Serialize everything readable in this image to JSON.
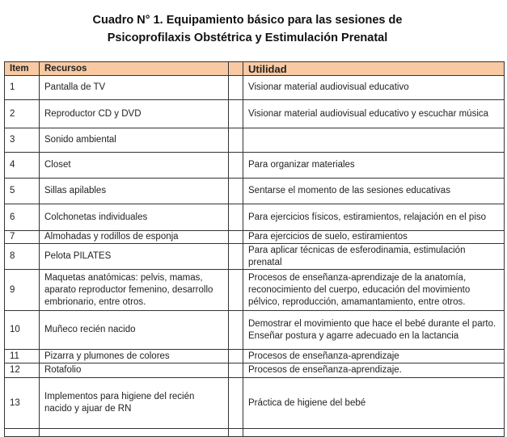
{
  "title": {
    "line1": "Cuadro N° 1. Equipamiento básico para las sesiones de",
    "line2": "Psicoprofilaxis Obstétrica y Estimulación Prenatal"
  },
  "headers": {
    "item": "Item",
    "recursos": "Recursos",
    "blank": "",
    "utilidad": "Utilidad"
  },
  "header_color": "#f8c9a2",
  "rows": [
    {
      "item": "1",
      "recurso": "Pantalla de TV",
      "utilidad": "Visionar material audiovisual educativo"
    },
    {
      "item": "2",
      "recurso": "Reproductor CD y DVD",
      "utilidad": "Visionar material audiovisual educativo y escuchar música"
    },
    {
      "item": "3",
      "recurso": "Sonido ambiental",
      "utilidad": ""
    },
    {
      "item": "4",
      "recurso": "Closet",
      "utilidad": "Para organizar materiales"
    },
    {
      "item": "5",
      "recurso": "Sillas apilables",
      "utilidad": "Sentarse el momento de las sesiones educativas"
    },
    {
      "item": "6",
      "recurso": "Colchonetas individuales",
      "utilidad": "Para ejercicios físicos,  estiramientos, relajación en el piso"
    },
    {
      "item": "7",
      "recurso": "Almohadas y rodillos de esponja",
      "utilidad": "Para ejercicios de suelo, estiramientos"
    },
    {
      "item": "8",
      "recurso": "Pelota PILATES",
      "utilidad": "Para aplicar técnicas de esferodinamia, estimulación prenatal"
    },
    {
      "item": "9",
      "recurso": "Maquetas anatómicas: pelvis, mamas, aparato reproductor femenino, desarrollo embrionario, entre otros.",
      "utilidad": "Procesos de enseñanza-aprendizaje  de la anatomía, reconocimiento del cuerpo, educación del movimiento pélvico, reproducción, amamantamiento, entre otros."
    },
    {
      "item": "10",
      "recurso": "Muñeco recién nacido",
      "utilidad": "Demostrar  el movimiento que hace el bebé durante el parto.\nEnseñar postura y agarre adecuado en la lactancia"
    },
    {
      "item": "11",
      "recurso": "Pizarra y plumones de colores",
      "utilidad": "Procesos de enseñanza-aprendizaje"
    },
    {
      "item": "12",
      "recurso": "Rotafolio",
      "utilidad": "Procesos de enseñanza-aprendizaje."
    },
    {
      "item": "13",
      "recurso": "Implementos para higiene del recién nacido y ajuar de RN",
      "utilidad": "Práctica de higiene del bebé"
    }
  ]
}
